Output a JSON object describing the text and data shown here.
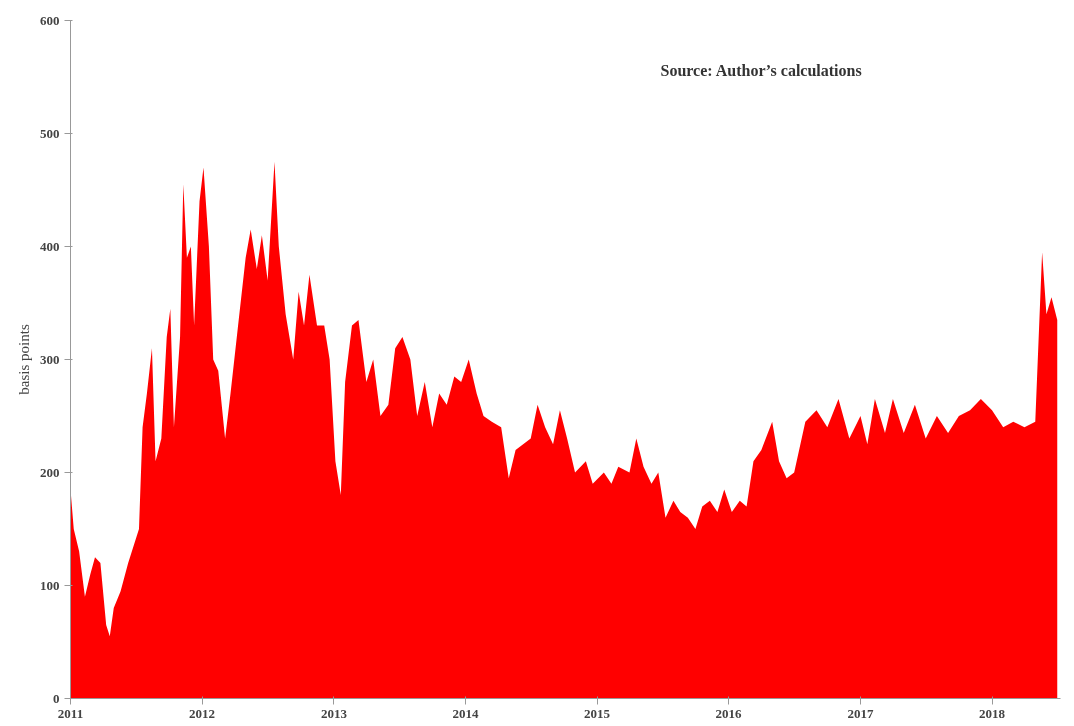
{
  "chart_data": {
    "type": "area",
    "ylabel": "basis points",
    "annotations": [
      "Source: Author’s calculations"
    ],
    "x": [
      "2011-01-01",
      "2011-01-10",
      "2011-01-25",
      "2011-02-10",
      "2011-02-25",
      "2011-03-10",
      "2011-03-25",
      "2011-04-10",
      "2011-04-20",
      "2011-05-01",
      "2011-05-20",
      "2011-06-10",
      "2011-06-25",
      "2011-07-10",
      "2011-07-20",
      "2011-08-01",
      "2011-08-15",
      "2011-08-25",
      "2011-09-10",
      "2011-09-25",
      "2011-10-05",
      "2011-10-15",
      "2011-11-01",
      "2011-11-10",
      "2011-11-20",
      "2011-12-01",
      "2011-12-10",
      "2011-12-25",
      "2012-01-05",
      "2012-01-20",
      "2012-02-01",
      "2012-02-15",
      "2012-03-05",
      "2012-03-20",
      "2012-04-10",
      "2012-05-01",
      "2012-05-15",
      "2012-06-01",
      "2012-06-15",
      "2012-07-01",
      "2012-07-20",
      "2012-08-01",
      "2012-08-20",
      "2012-09-10",
      "2012-09-25",
      "2012-10-10",
      "2012-10-25",
      "2012-11-15",
      "2012-12-05",
      "2012-12-20",
      "2013-01-05",
      "2013-01-20",
      "2013-02-01",
      "2013-02-20",
      "2013-03-10",
      "2013-04-01",
      "2013-04-20",
      "2013-05-10",
      "2013-06-01",
      "2013-06-20",
      "2013-07-10",
      "2013-08-01",
      "2013-08-20",
      "2013-09-10",
      "2013-10-01",
      "2013-10-20",
      "2013-11-10",
      "2013-12-01",
      "2013-12-20",
      "2014-01-10",
      "2014-02-01",
      "2014-02-20",
      "2014-03-15",
      "2014-04-10",
      "2014-05-01",
      "2014-05-20",
      "2014-06-10",
      "2014-07-01",
      "2014-07-20",
      "2014-08-10",
      "2014-09-01",
      "2014-09-20",
      "2014-10-10",
      "2014-11-01",
      "2014-12-01",
      "2014-12-20",
      "2015-01-20",
      "2015-02-10",
      "2015-03-01",
      "2015-04-01",
      "2015-04-20",
      "2015-05-10",
      "2015-06-01",
      "2015-06-20",
      "2015-07-10",
      "2015-08-01",
      "2015-08-20",
      "2015-09-10",
      "2015-10-01",
      "2015-10-20",
      "2015-11-10",
      "2015-12-01",
      "2015-12-20",
      "2016-01-10",
      "2016-02-01",
      "2016-02-20",
      "2016-03-10",
      "2016-04-01",
      "2016-05-01",
      "2016-05-20",
      "2016-06-10",
      "2016-07-01",
      "2016-08-01",
      "2016-09-01",
      "2016-10-01",
      "2016-11-01",
      "2016-12-01",
      "2017-01-01",
      "2017-01-20",
      "2017-02-10",
      "2017-03-10",
      "2017-04-01",
      "2017-05-01",
      "2017-06-01",
      "2017-07-01",
      "2017-08-01",
      "2017-09-01",
      "2017-10-01",
      "2017-11-01",
      "2017-12-01",
      "2018-01-01",
      "2018-02-01",
      "2018-03-01",
      "2018-04-01",
      "2018-05-01",
      "2018-05-20",
      "2018-06-01",
      "2018-06-15",
      "2018-07-01"
    ],
    "series": [
      {
        "color": "#ff0000",
        "values": [
          185,
          150,
          130,
          90,
          110,
          125,
          120,
          65,
          55,
          80,
          95,
          120,
          135,
          150,
          240,
          270,
          310,
          210,
          230,
          320,
          345,
          240,
          320,
          455,
          390,
          400,
          330,
          440,
          470,
          400,
          300,
          290,
          230,
          270,
          330,
          390,
          415,
          380,
          410,
          370,
          475,
          400,
          340,
          300,
          360,
          330,
          375,
          330,
          330,
          300,
          210,
          180,
          280,
          330,
          335,
          280,
          300,
          250,
          260,
          310,
          320,
          300,
          250,
          280,
          240,
          270,
          260,
          285,
          280,
          300,
          270,
          250,
          245,
          240,
          195,
          220,
          225,
          230,
          260,
          240,
          225,
          255,
          230,
          200,
          210,
          190,
          200,
          190,
          205,
          200,
          230,
          205,
          190,
          200,
          160,
          175,
          165,
          160,
          150,
          170,
          175,
          165,
          185,
          165,
          175,
          170,
          210,
          220,
          245,
          210,
          195,
          200,
          245,
          255,
          240,
          265,
          230,
          250,
          225,
          265,
          235,
          265,
          235,
          260,
          230,
          250,
          235,
          250,
          255,
          265,
          255,
          240,
          245,
          240,
          245,
          395,
          340,
          355,
          335
        ]
      }
    ],
    "xlim": [
      "2011-01-01",
      "2018-07-10"
    ],
    "xticks": [
      "2011",
      "2012",
      "2013",
      "2014",
      "2015",
      "2016",
      "2017",
      "2018"
    ],
    "ylim": [
      0,
      600
    ],
    "yticks": [
      0,
      100,
      200,
      300,
      400,
      500,
      600
    ],
    "grid": false
  }
}
